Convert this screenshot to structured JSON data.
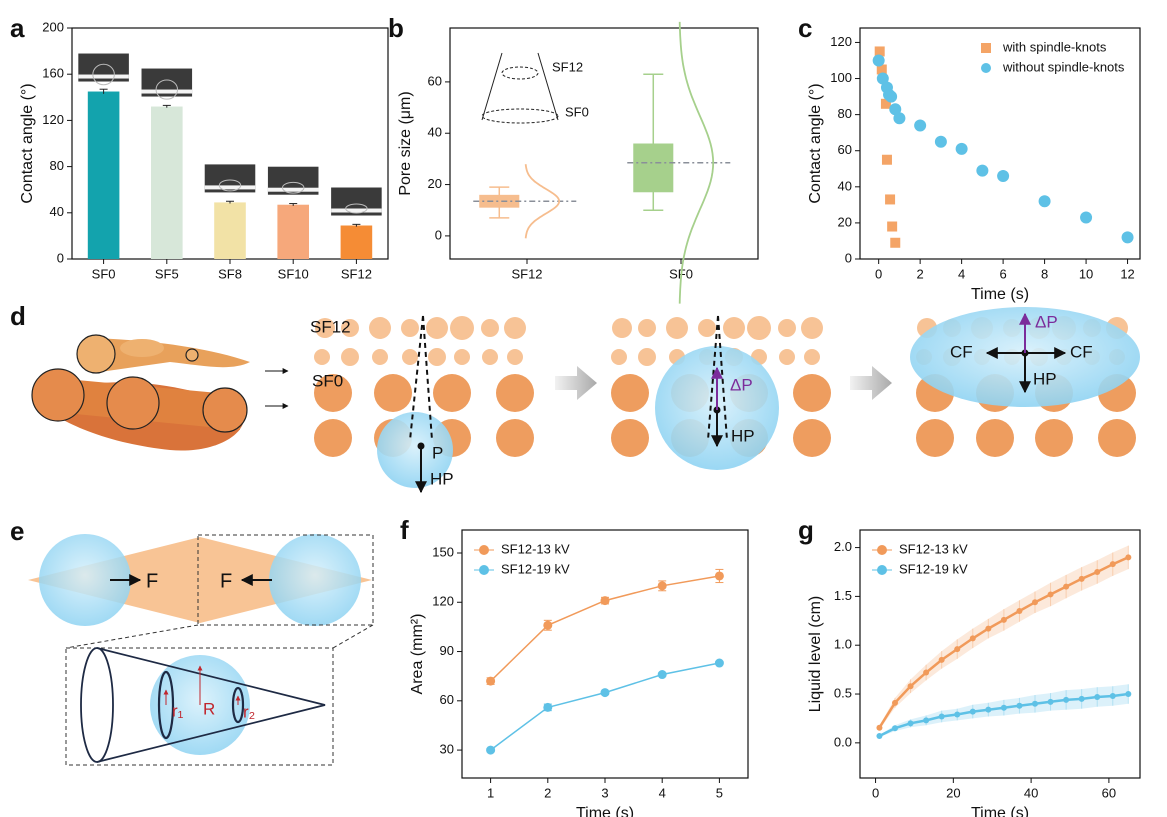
{
  "chart_data": [
    {
      "type": "bar",
      "panel": "a",
      "ylabel": "Contact angle (°)",
      "categories": [
        "SF0",
        "SF5",
        "SF8",
        "SF10",
        "SF12"
      ],
      "values": [
        145,
        132,
        49,
        47,
        29
      ],
      "errors": [
        2,
        1,
        1,
        1,
        1
      ],
      "colors": [
        "#13a3ad",
        "#d7e7d9",
        "#f2e2a6",
        "#f6a87b",
        "#f58c35"
      ],
      "ylim": [
        0,
        200
      ],
      "yticks": [
        0,
        40,
        80,
        120,
        160,
        200
      ]
    },
    {
      "type": "box",
      "panel": "b",
      "ylabel": "Pore size (μm)",
      "categories": [
        "SF12",
        "SF0"
      ],
      "boxes": [
        {
          "whislo": 7,
          "q1": 11,
          "med": 13.5,
          "q3": 16,
          "whishi": 19
        },
        {
          "whislo": 10,
          "q1": 17,
          "med": 28.5,
          "q3": 36,
          "whishi": 63
        }
      ],
      "colors": [
        "#f6bd8e",
        "#a6d08c"
      ],
      "annotations": [
        "SF12",
        "SF0"
      ],
      "ylim": [
        -9,
        81
      ],
      "yticks": [
        0,
        20,
        40,
        60
      ]
    },
    {
      "type": "scatter",
      "panel": "c",
      "ylabel": "Contact angle (°)",
      "xlabel": "Time (s)",
      "legend": "upper right",
      "series": [
        {
          "name": "with spindle-knots",
          "color": "#f4a466",
          "marker": "square",
          "x": [
            0.05,
            0.15,
            0.35,
            0.4,
            0.55,
            0.65,
            0.8
          ],
          "values": [
            115,
            105,
            86,
            55,
            33,
            18,
            9
          ]
        },
        {
          "name": "without spindle-knots",
          "color": "#5ec1e6",
          "marker": "circle",
          "x": [
            0,
            0.2,
            0.4,
            0.5,
            0.6,
            0.8,
            1,
            2,
            3,
            4,
            5,
            6,
            8,
            10,
            12
          ],
          "values": [
            110,
            100,
            95,
            91,
            90,
            83,
            78,
            74,
            65,
            61,
            49,
            46,
            32,
            23,
            12
          ]
        }
      ],
      "xlim": [
        -0.9,
        12.6
      ],
      "xticks": [
        0,
        2,
        4,
        6,
        8,
        10,
        12
      ],
      "ylim": [
        0,
        128
      ],
      "yticks": [
        0,
        20,
        40,
        60,
        80,
        100,
        120
      ]
    },
    {
      "type": "line",
      "panel": "f",
      "ylabel": "Area (mm²)",
      "xlabel": "Time (s)",
      "legend": "upper left",
      "error_style": "bars",
      "x": [
        1,
        2,
        3,
        4,
        5
      ],
      "series": [
        {
          "name": "SF12-13 kV",
          "color": "#f19a5a",
          "values": [
            72,
            106,
            121,
            130,
            136
          ],
          "errors": [
            2,
            3,
            2,
            3,
            4
          ]
        },
        {
          "name": "SF12-19 kV",
          "color": "#5ec1e6",
          "values": [
            30,
            56,
            65,
            76,
            83
          ],
          "errors": [
            1,
            2,
            1,
            1,
            1
          ]
        }
      ],
      "xlim": [
        0.5,
        5.5
      ],
      "xticks": [
        1,
        2,
        3,
        4,
        5
      ],
      "ylim": [
        13,
        164
      ],
      "yticks": [
        30,
        60,
        90,
        120,
        150
      ]
    },
    {
      "type": "line",
      "panel": "g",
      "ylabel": "Liquid level (cm)",
      "xlabel": "Time (s)",
      "legend": "upper left",
      "error_style": "band",
      "x": [
        1,
        5,
        9,
        13,
        17,
        21,
        25,
        29,
        33,
        37,
        41,
        45,
        49,
        53,
        57,
        61,
        65
      ],
      "series": [
        {
          "name": "SF12-13 kV",
          "color": "#f19a5a",
          "values": [
            0.155,
            0.41,
            0.58,
            0.72,
            0.85,
            0.96,
            1.07,
            1.17,
            1.26,
            1.35,
            1.44,
            1.52,
            1.6,
            1.68,
            1.75,
            1.83,
            1.9
          ],
          "errors": [
            0.02,
            0.05,
            0.07,
            0.08,
            0.09,
            0.1,
            0.1,
            0.1,
            0.11,
            0.11,
            0.11,
            0.12,
            0.12,
            0.12,
            0.12,
            0.12,
            0.12
          ]
        },
        {
          "name": "SF12-19 kV",
          "color": "#5ec1e6",
          "values": [
            0.07,
            0.15,
            0.2,
            0.23,
            0.27,
            0.29,
            0.32,
            0.34,
            0.36,
            0.38,
            0.4,
            0.42,
            0.44,
            0.45,
            0.47,
            0.48,
            0.5
          ],
          "errors": [
            0.01,
            0.03,
            0.04,
            0.05,
            0.06,
            0.06,
            0.07,
            0.07,
            0.08,
            0.08,
            0.09,
            0.09,
            0.1,
            0.1,
            0.1,
            0.1,
            0.1
          ]
        }
      ],
      "xlim": [
        -4,
        68
      ],
      "xticks": [
        0,
        20,
        40,
        60
      ],
      "ylim": [
        -0.36,
        2.18
      ],
      "yticks": [
        {
          "value": 0,
          "label": "0.0"
        },
        {
          "value": 0.5,
          "label": "0.5"
        },
        {
          "value": 1,
          "label": "1.0"
        },
        {
          "value": 1.5,
          "label": "1.5"
        },
        {
          "value": 2,
          "label": "2.0"
        }
      ]
    }
  ],
  "diagrams": {
    "d": {
      "panel": "d",
      "sf12": "SF12",
      "sf0": "SF0",
      "p": "P",
      "hp1": "HP",
      "dp2": "ΔP",
      "hp2": "HP",
      "dp3": "ΔP",
      "cf1": "CF",
      "cf2": "CF",
      "hp3": "HP"
    },
    "e": {
      "panel": "e",
      "f1": "F",
      "f2": "F",
      "r1": "r₁",
      "r": "R",
      "r2": "r₂"
    }
  }
}
